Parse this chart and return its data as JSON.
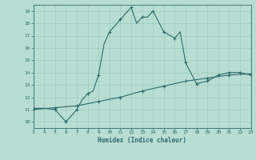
{
  "xlabel": "Humidex (Indice chaleur)",
  "bg_color": "#b8ddd4",
  "grid_color": "#9cccc0",
  "line_color": "#2d6b6b",
  "xlim": [
    3,
    23
  ],
  "ylim": [
    9.5,
    19.5
  ],
  "xticks": [
    3,
    4,
    5,
    6,
    7,
    8,
    9,
    10,
    11,
    12,
    13,
    14,
    15,
    16,
    17,
    18,
    19,
    20,
    21,
    22,
    23
  ],
  "yticks": [
    10,
    11,
    12,
    13,
    14,
    15,
    16,
    17,
    18,
    19
  ],
  "curve1_x": [
    3,
    4,
    5,
    6,
    7,
    7.5,
    8,
    8.5,
    9,
    9.5,
    10,
    11,
    12,
    12.5,
    13,
    13.5,
    14,
    15,
    16,
    16.5,
    17,
    18,
    19,
    20,
    21,
    22,
    23
  ],
  "curve1_y": [
    11.1,
    11.1,
    11.0,
    10.0,
    11.0,
    11.8,
    12.3,
    12.5,
    13.8,
    16.3,
    17.3,
    18.3,
    19.3,
    18.0,
    18.5,
    18.5,
    19.0,
    17.3,
    16.8,
    17.3,
    14.8,
    13.1,
    13.3,
    13.8,
    14.0,
    14.0,
    13.8
  ],
  "curve2_x": [
    3,
    5,
    7,
    9,
    11,
    13,
    15,
    17,
    19,
    21,
    23
  ],
  "curve2_y": [
    11.0,
    11.15,
    11.3,
    11.65,
    12.0,
    12.5,
    12.9,
    13.3,
    13.55,
    13.8,
    13.9
  ],
  "marker_x1": [
    3,
    5,
    6,
    7,
    8,
    9,
    10,
    11,
    12,
    13,
    14,
    15,
    16,
    17,
    18,
    19,
    20,
    21,
    22,
    23
  ],
  "marker_y1": [
    11.1,
    11.0,
    10.0,
    11.0,
    12.3,
    13.8,
    17.3,
    18.3,
    19.3,
    18.5,
    19.0,
    17.3,
    16.8,
    14.8,
    13.1,
    13.3,
    13.8,
    14.0,
    14.0,
    13.8
  ],
  "marker_x2": [
    3,
    5,
    7,
    9,
    11,
    13,
    15,
    17,
    19,
    21,
    23
  ],
  "marker_y2": [
    11.0,
    11.15,
    11.3,
    11.65,
    12.0,
    12.5,
    12.9,
    13.3,
    13.55,
    13.8,
    13.9
  ]
}
